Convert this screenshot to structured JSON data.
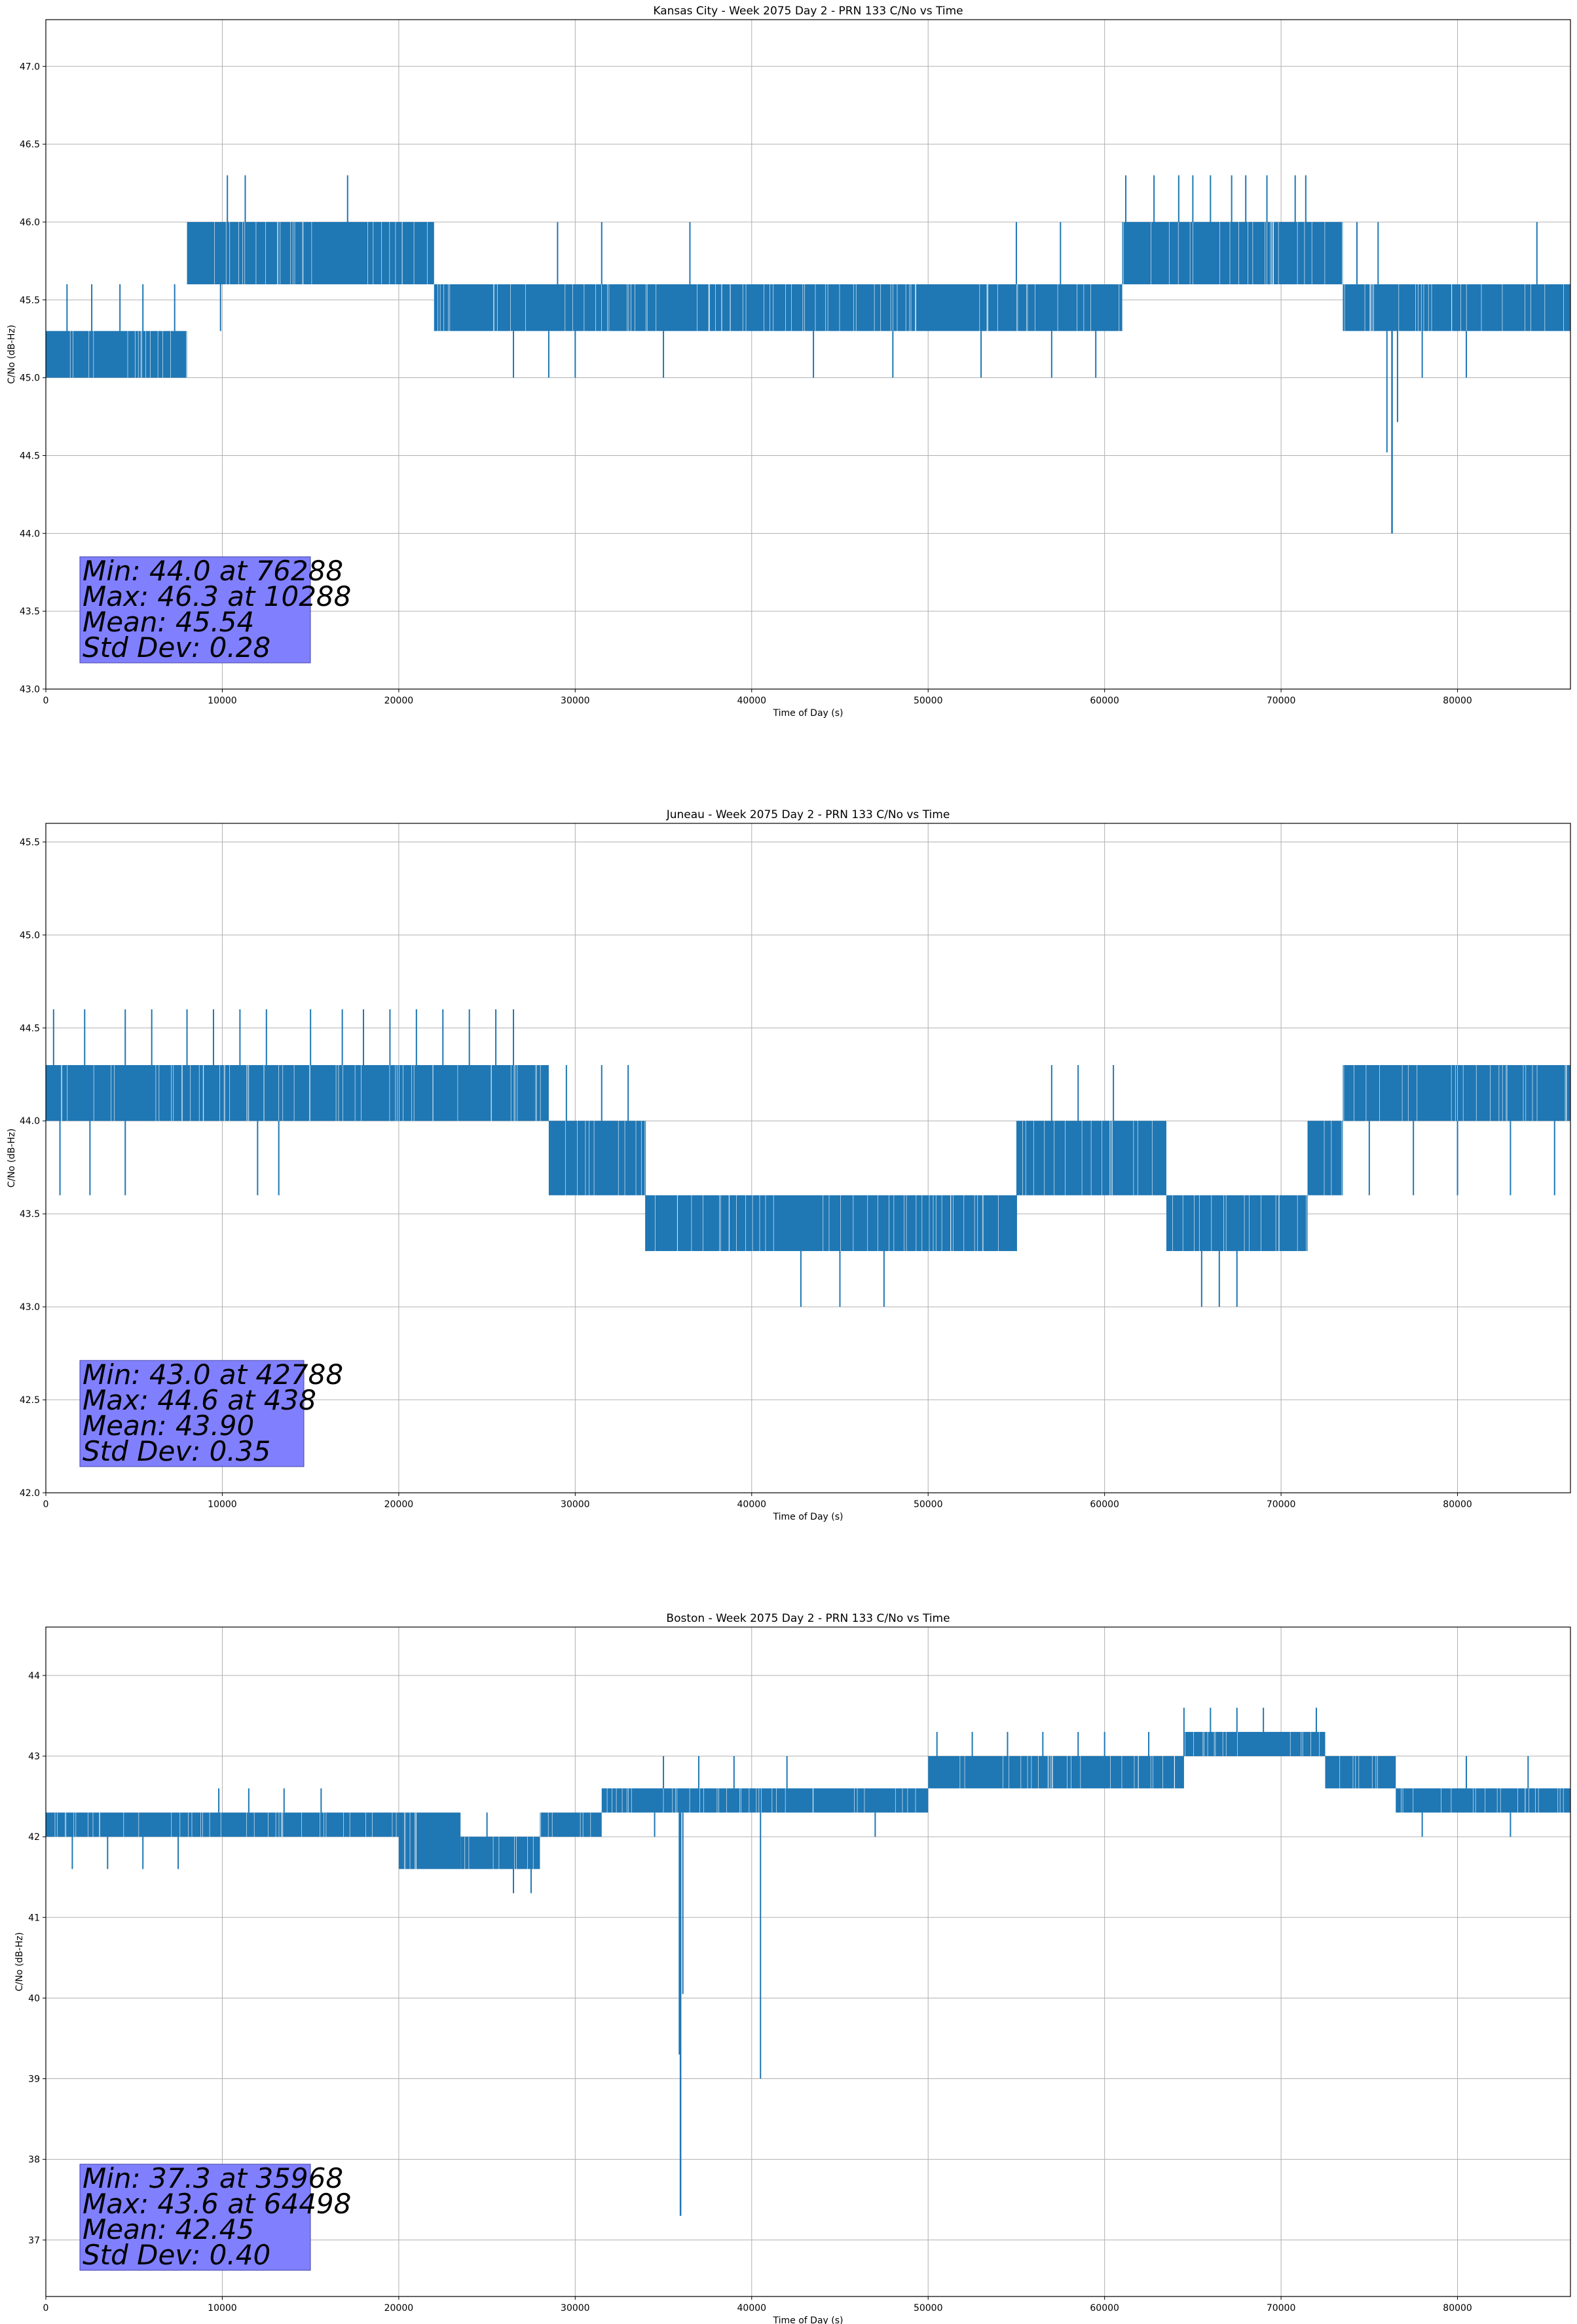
{
  "figure": {
    "background": "#ffffff"
  },
  "style": {
    "line_color": "#1f77b4",
    "grid_color": "#b0b0b0",
    "stats_box_color": "#8080ff"
  },
  "chart_data": [
    {
      "type": "line",
      "title": "Kansas City - Week 2075 Day 2 - PRN 133 C/No vs Time",
      "xlabel": "Time of Day (s)",
      "ylabel": "C/No (dB-Hz)",
      "xlim": [
        0,
        86400
      ],
      "ylim": [
        43.0,
        47.3
      ],
      "xticks": [
        0,
        10000,
        20000,
        30000,
        40000,
        50000,
        60000,
        70000,
        80000
      ],
      "yticks": [
        43.0,
        43.5,
        44.0,
        44.5,
        45.0,
        45.5,
        46.0,
        46.5,
        47.0
      ],
      "ytick_decimals": 1,
      "grid": true,
      "series": [
        {
          "band_segments": [
            {
              "x": [
                0,
                8000
              ],
              "low": 45.0,
              "high": 45.3
            },
            {
              "x": [
                8000,
                22000
              ],
              "low": 45.6,
              "high": 46.0
            },
            {
              "x": [
                22000,
                61000
              ],
              "low": 45.3,
              "high": 45.6
            },
            {
              "x": [
                61000,
                73500
              ],
              "low": 45.6,
              "high": 46.0
            },
            {
              "x": [
                73500,
                86400
              ],
              "low": 45.3,
              "high": 45.6
            }
          ],
          "spikes_up": [
            [
              1200,
              45.6
            ],
            [
              2600,
              45.6
            ],
            [
              4200,
              45.6
            ],
            [
              5500,
              45.6
            ],
            [
              7300,
              45.6
            ],
            [
              10288,
              46.3
            ],
            [
              11300,
              46.3
            ],
            [
              17100,
              46.3
            ],
            [
              29000,
              46.0
            ],
            [
              31500,
              46.0
            ],
            [
              36500,
              46.0
            ],
            [
              55000,
              46.0
            ],
            [
              57500,
              46.0
            ],
            [
              61200,
              46.3
            ],
            [
              62800,
              46.3
            ],
            [
              64200,
              46.3
            ],
            [
              65000,
              46.3
            ],
            [
              66000,
              46.3
            ],
            [
              67200,
              46.3
            ],
            [
              68000,
              46.3
            ],
            [
              69200,
              46.3
            ],
            [
              70800,
              46.3
            ],
            [
              71400,
              46.3
            ],
            [
              74300,
              46.0
            ],
            [
              75500,
              46.0
            ],
            [
              84500,
              46.0
            ]
          ],
          "spikes_down": [
            [
              9900,
              45.3
            ],
            [
              23400,
              45.3
            ],
            [
              24800,
              45.3
            ],
            [
              26500,
              45.0
            ],
            [
              28500,
              45.0
            ],
            [
              30000,
              45.0
            ],
            [
              35000,
              45.0
            ],
            [
              43500,
              45.0
            ],
            [
              48000,
              45.0
            ],
            [
              53000,
              45.0
            ],
            [
              57000,
              45.0
            ],
            [
              59500,
              45.0
            ],
            [
              74500,
              45.3
            ],
            [
              78000,
              45.0
            ],
            [
              80500,
              45.0
            ]
          ],
          "dip": {
            "x": [
              76000,
              76600
            ],
            "min_point": [
              76288,
              44.0
            ]
          }
        }
      ],
      "stats": [
        "Min: 44.0 at 76288",
        "Max: 46.3 at 10288",
        "Mean: 45.54",
        "Std Dev: 0.28"
      ]
    },
    {
      "type": "line",
      "title": "Juneau - Week 2075 Day 2 - PRN 133 C/No vs Time",
      "xlabel": "Time of Day (s)",
      "ylabel": "C/No (dB-Hz)",
      "xlim": [
        0,
        86400
      ],
      "ylim": [
        42.0,
        45.6
      ],
      "xticks": [
        0,
        10000,
        20000,
        30000,
        40000,
        50000,
        60000,
        70000,
        80000
      ],
      "yticks": [
        42.0,
        42.5,
        43.0,
        43.5,
        44.0,
        44.5,
        45.0,
        45.5
      ],
      "ytick_decimals": 1,
      "grid": true,
      "series": [
        {
          "band_segments": [
            {
              "x": [
                0,
                28500
              ],
              "low": 44.0,
              "high": 44.3
            },
            {
              "x": [
                28500,
                34000
              ],
              "low": 43.6,
              "high": 44.0
            },
            {
              "x": [
                34000,
                55000
              ],
              "low": 43.3,
              "high": 43.6
            },
            {
              "x": [
                55000,
                63500
              ],
              "low": 43.6,
              "high": 44.0
            },
            {
              "x": [
                63500,
                71500
              ],
              "low": 43.3,
              "high": 43.6
            },
            {
              "x": [
                71500,
                73500
              ],
              "low": 43.6,
              "high": 44.0
            },
            {
              "x": [
                73500,
                86400
              ],
              "low": 44.0,
              "high": 44.3
            }
          ],
          "spikes_up": [
            [
              438,
              44.6
            ],
            [
              2200,
              44.6
            ],
            [
              4500,
              44.6
            ],
            [
              6000,
              44.6
            ],
            [
              8000,
              44.6
            ],
            [
              9500,
              44.6
            ],
            [
              11000,
              44.6
            ],
            [
              12500,
              44.6
            ],
            [
              15000,
              44.6
            ],
            [
              16800,
              44.6
            ],
            [
              18000,
              44.6
            ],
            [
              19500,
              44.6
            ],
            [
              21000,
              44.6
            ],
            [
              22500,
              44.6
            ],
            [
              24000,
              44.6
            ],
            [
              25500,
              44.6
            ],
            [
              26500,
              44.6
            ],
            [
              29500,
              44.3
            ],
            [
              31500,
              44.3
            ],
            [
              33000,
              44.3
            ],
            [
              57000,
              44.3
            ],
            [
              58500,
              44.3
            ],
            [
              60500,
              44.3
            ]
          ],
          "spikes_down": [
            [
              800,
              43.6
            ],
            [
              2500,
              43.6
            ],
            [
              4500,
              43.6
            ],
            [
              12000,
              43.6
            ],
            [
              13200,
              43.6
            ],
            [
              34000,
              43.3
            ],
            [
              36000,
              43.3
            ],
            [
              39000,
              43.3
            ],
            [
              42788,
              43.0
            ],
            [
              45000,
              43.0
            ],
            [
              47500,
              43.0
            ],
            [
              55000,
              43.6
            ],
            [
              59500,
              43.6
            ],
            [
              65500,
              43.0
            ],
            [
              66500,
              43.0
            ],
            [
              67500,
              43.0
            ],
            [
              75000,
              43.6
            ],
            [
              77500,
              43.6
            ],
            [
              80000,
              43.6
            ],
            [
              83000,
              43.6
            ],
            [
              85500,
              43.6
            ]
          ]
        }
      ],
      "stats": [
        "Min: 43.0 at 42788",
        "Max: 44.6 at 438",
        "Mean: 43.90",
        "Std Dev: 0.35"
      ]
    },
    {
      "type": "line",
      "title": "Boston - Week 2075 Day 2 - PRN 133 C/No vs Time",
      "xlabel": "Time of Day (s)",
      "ylabel": "C/No (dB-Hz)",
      "xlim": [
        0,
        86400
      ],
      "ylim": [
        36.3,
        44.6
      ],
      "xticks": [
        0,
        10000,
        20000,
        30000,
        40000,
        50000,
        60000,
        70000,
        80000
      ],
      "yticks": [
        37,
        38,
        39,
        40,
        41,
        42,
        43,
        44
      ],
      "ytick_decimals": 0,
      "grid": true,
      "series": [
        {
          "band_segments": [
            {
              "x": [
                0,
                20000
              ],
              "low": 42.0,
              "high": 42.3
            },
            {
              "x": [
                20000,
                23500
              ],
              "low": 41.6,
              "high": 42.3
            },
            {
              "x": [
                23500,
                28000
              ],
              "low": 41.6,
              "high": 42.0
            },
            {
              "x": [
                28000,
                31500
              ],
              "low": 42.0,
              "high": 42.3
            },
            {
              "x": [
                31500,
                50000
              ],
              "low": 42.3,
              "high": 42.6
            },
            {
              "x": [
                50000,
                64500
              ],
              "low": 42.6,
              "high": 43.0
            },
            {
              "x": [
                64500,
                72500
              ],
              "low": 43.0,
              "high": 43.3
            },
            {
              "x": [
                72500,
                76500
              ],
              "low": 42.6,
              "high": 43.0
            },
            {
              "x": [
                76500,
                86400
              ],
              "low": 42.3,
              "high": 42.6
            }
          ],
          "spikes_up": [
            [
              9800,
              42.6
            ],
            [
              11500,
              42.6
            ],
            [
              13500,
              42.6
            ],
            [
              15600,
              42.6
            ],
            [
              25000,
              42.3
            ],
            [
              35000,
              43.0
            ],
            [
              37000,
              43.0
            ],
            [
              39000,
              43.0
            ],
            [
              42000,
              43.0
            ],
            [
              50500,
              43.3
            ],
            [
              52500,
              43.3
            ],
            [
              54500,
              43.3
            ],
            [
              56500,
              43.3
            ],
            [
              58500,
              43.3
            ],
            [
              60000,
              43.3
            ],
            [
              62500,
              43.3
            ],
            [
              64498,
              43.6
            ],
            [
              66000,
              43.6
            ],
            [
              67500,
              43.6
            ],
            [
              69000,
              43.6
            ],
            [
              72000,
              43.6
            ],
            [
              75000,
              43.0
            ],
            [
              80500,
              43.0
            ],
            [
              84000,
              43.0
            ]
          ],
          "spikes_down": [
            [
              1500,
              41.6
            ],
            [
              3500,
              41.6
            ],
            [
              5500,
              41.6
            ],
            [
              7500,
              41.6
            ],
            [
              26500,
              41.3
            ],
            [
              27500,
              41.3
            ],
            [
              34500,
              42.0
            ],
            [
              40500,
              39.0
            ],
            [
              47000,
              42.0
            ],
            [
              78000,
              42.0
            ],
            [
              83000,
              42.0
            ]
          ],
          "dip": {
            "x": [
              35900,
              36100
            ],
            "min_point": [
              35968,
              37.3
            ]
          }
        }
      ],
      "stats": [
        "Min: 37.3 at 35968",
        "Max: 43.6 at 64498",
        "Mean: 42.45",
        "Std Dev: 0.40"
      ]
    }
  ]
}
